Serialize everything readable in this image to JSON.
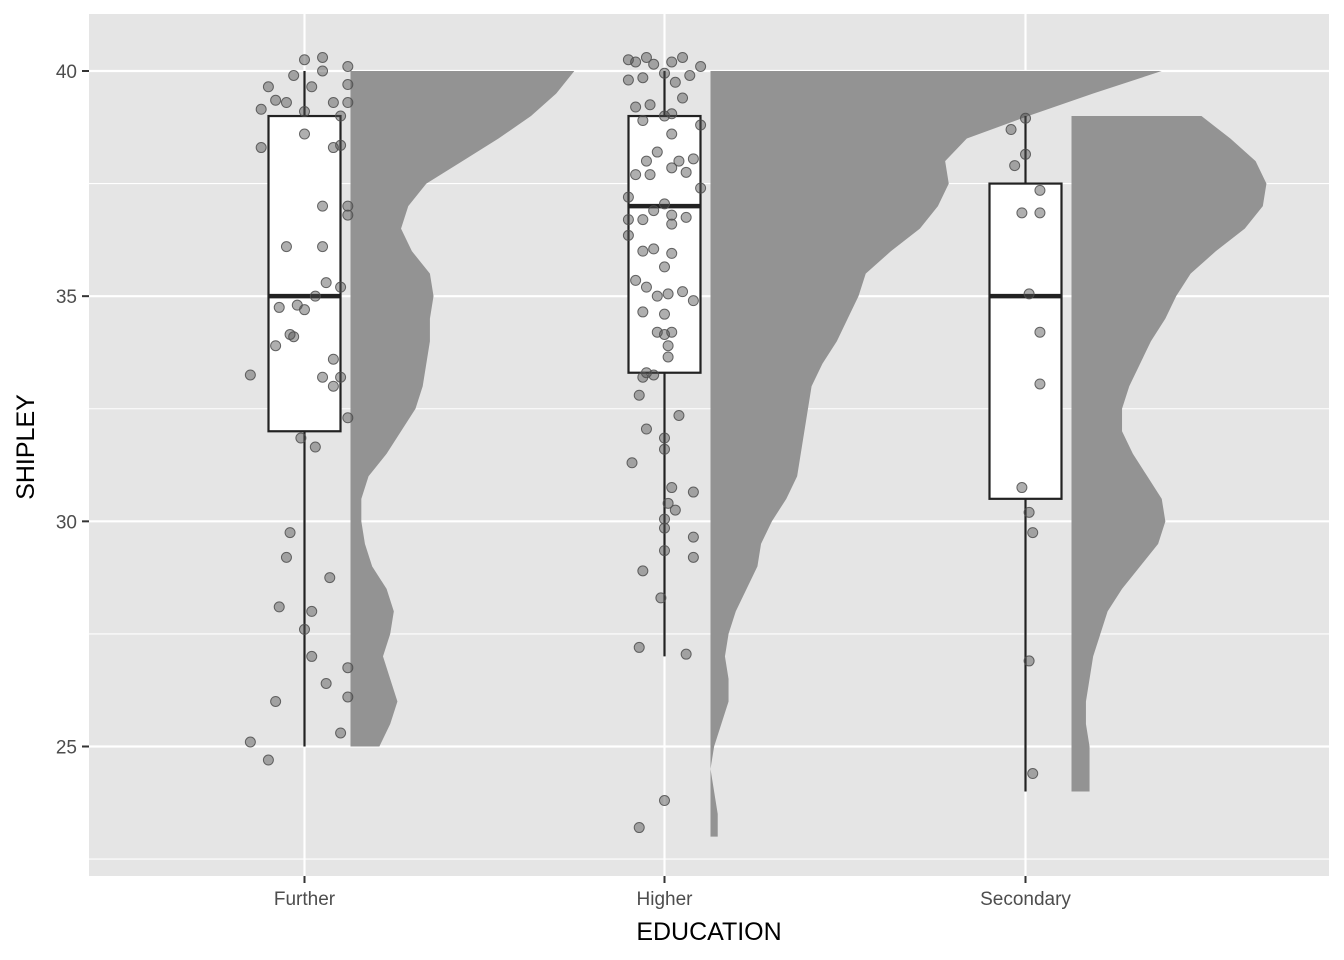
{
  "chart_data": {
    "type": "raincloud",
    "title": "",
    "xlabel": "EDUCATION",
    "ylabel": "SHIPLEY",
    "ylim": [
      22.2,
      40.3
    ],
    "y_ticks": [
      25,
      30,
      35,
      40
    ],
    "categories": [
      "Further",
      "Higher",
      "Secondary"
    ],
    "grid": true,
    "colors": {
      "panel": "#e5e5e5",
      "grid": "#ffffff",
      "density": "#939393",
      "box_fill": "#ffffff",
      "box_line": "#222222",
      "points": "#4d4d4d"
    },
    "groups": [
      {
        "name": "Further",
        "box": {
          "min": 25.0,
          "q1": 32.0,
          "median": 35.0,
          "q3": 39.0,
          "max": 40.0
        },
        "density": {
          "y": [
            25,
            25.5,
            26,
            26.5,
            27,
            27.5,
            28,
            28.5,
            29,
            29.5,
            30,
            30.5,
            31,
            31.5,
            32,
            32.5,
            33,
            33.5,
            34,
            34.5,
            35,
            35.5,
            36,
            36.5,
            37,
            37.5,
            38,
            38.5,
            39,
            39.5,
            40
          ],
          "width": [
            0.08,
            0.11,
            0.13,
            0.11,
            0.09,
            0.11,
            0.12,
            0.1,
            0.06,
            0.04,
            0.03,
            0.03,
            0.05,
            0.1,
            0.14,
            0.18,
            0.2,
            0.21,
            0.22,
            0.22,
            0.23,
            0.22,
            0.17,
            0.14,
            0.16,
            0.21,
            0.31,
            0.41,
            0.5,
            0.57,
            0.62
          ]
        },
        "points": [
          [
            0.05,
            40.3
          ],
          [
            0.0,
            40.25
          ],
          [
            0.12,
            40.1
          ],
          [
            0.05,
            40.0
          ],
          [
            -0.03,
            39.9
          ],
          [
            0.02,
            39.65
          ],
          [
            0.12,
            39.7
          ],
          [
            -0.1,
            39.65
          ],
          [
            -0.08,
            39.35
          ],
          [
            -0.05,
            39.3
          ],
          [
            0.08,
            39.3
          ],
          [
            0.12,
            39.3
          ],
          [
            -0.12,
            39.15
          ],
          [
            0.0,
            39.1
          ],
          [
            0.1,
            39.0
          ],
          [
            0.0,
            38.6
          ],
          [
            0.08,
            38.3
          ],
          [
            -0.12,
            38.3
          ],
          [
            0.1,
            38.35
          ],
          [
            0.05,
            37.0
          ],
          [
            0.12,
            37.0
          ],
          [
            0.12,
            36.8
          ],
          [
            -0.05,
            36.1
          ],
          [
            0.05,
            36.1
          ],
          [
            0.06,
            35.3
          ],
          [
            0.1,
            35.2
          ],
          [
            0.03,
            35.0
          ],
          [
            -0.02,
            34.8
          ],
          [
            -0.07,
            34.75
          ],
          [
            0.0,
            34.7
          ],
          [
            -0.03,
            34.1
          ],
          [
            -0.04,
            34.15
          ],
          [
            -0.08,
            33.9
          ],
          [
            0.08,
            33.6
          ],
          [
            0.05,
            33.2
          ],
          [
            0.1,
            33.2
          ],
          [
            -0.15,
            33.25
          ],
          [
            0.08,
            33.0
          ],
          [
            0.12,
            32.3
          ],
          [
            -0.01,
            31.85
          ],
          [
            0.03,
            31.65
          ],
          [
            -0.04,
            29.75
          ],
          [
            -0.05,
            29.2
          ],
          [
            0.07,
            28.75
          ],
          [
            -0.07,
            28.1
          ],
          [
            0.02,
            28.0
          ],
          [
            0.0,
            27.6
          ],
          [
            0.02,
            27.0
          ],
          [
            0.12,
            26.75
          ],
          [
            0.06,
            26.4
          ],
          [
            0.12,
            26.1
          ],
          [
            -0.08,
            26.0
          ],
          [
            0.1,
            25.3
          ],
          [
            -0.15,
            25.1
          ],
          [
            -0.1,
            24.7
          ]
        ]
      },
      {
        "name": "Higher",
        "box": {
          "min": 27.0,
          "q1": 33.3,
          "median": 37.0,
          "q3": 39.0,
          "max": 40.0
        },
        "density": {
          "y": [
            23,
            23.5,
            24,
            24.5,
            25,
            25.5,
            26,
            26.5,
            27,
            27.5,
            28,
            28.5,
            29,
            29.5,
            30,
            30.5,
            31,
            31.5,
            32,
            32.5,
            33,
            33.5,
            34,
            34.5,
            35,
            35.5,
            36,
            36.5,
            37,
            37.5,
            38,
            38.5,
            39,
            39.5,
            40
          ],
          "width": [
            0.02,
            0.02,
            0.01,
            0.0,
            0.01,
            0.03,
            0.05,
            0.05,
            0.04,
            0.05,
            0.07,
            0.1,
            0.13,
            0.14,
            0.17,
            0.21,
            0.24,
            0.25,
            0.26,
            0.27,
            0.28,
            0.31,
            0.35,
            0.38,
            0.41,
            0.43,
            0.5,
            0.58,
            0.63,
            0.66,
            0.65,
            0.71,
            0.88,
            1.06,
            1.25
          ]
        },
        "points": [
          [
            -0.05,
            40.3
          ],
          [
            -0.1,
            40.25
          ],
          [
            0.05,
            40.3
          ],
          [
            -0.03,
            40.15
          ],
          [
            0.02,
            40.2
          ],
          [
            0.1,
            40.1
          ],
          [
            -0.08,
            40.2
          ],
          [
            0.0,
            39.95
          ],
          [
            -0.06,
            39.85
          ],
          [
            0.07,
            39.9
          ],
          [
            -0.1,
            39.8
          ],
          [
            0.03,
            39.75
          ],
          [
            0.05,
            39.4
          ],
          [
            -0.04,
            39.25
          ],
          [
            0.02,
            39.05
          ],
          [
            -0.08,
            39.2
          ],
          [
            0.0,
            39.0
          ],
          [
            -0.06,
            38.9
          ],
          [
            0.1,
            38.8
          ],
          [
            0.02,
            38.6
          ],
          [
            -0.02,
            38.2
          ],
          [
            -0.05,
            38.0
          ],
          [
            0.04,
            38.0
          ],
          [
            0.08,
            38.05
          ],
          [
            0.02,
            37.85
          ],
          [
            0.06,
            37.75
          ],
          [
            -0.08,
            37.7
          ],
          [
            -0.04,
            37.7
          ],
          [
            0.1,
            37.4
          ],
          [
            -0.1,
            37.2
          ],
          [
            0.0,
            37.05
          ],
          [
            -0.03,
            36.9
          ],
          [
            0.02,
            36.8
          ],
          [
            0.06,
            36.75
          ],
          [
            -0.1,
            36.7
          ],
          [
            -0.06,
            36.7
          ],
          [
            0.02,
            36.6
          ],
          [
            -0.1,
            36.35
          ],
          [
            -0.03,
            36.05
          ],
          [
            -0.06,
            36.0
          ],
          [
            0.02,
            35.95
          ],
          [
            0.0,
            35.65
          ],
          [
            -0.08,
            35.35
          ],
          [
            0.05,
            35.1
          ],
          [
            -0.05,
            35.2
          ],
          [
            0.01,
            35.05
          ],
          [
            -0.02,
            35.0
          ],
          [
            0.08,
            34.9
          ],
          [
            -0.06,
            34.65
          ],
          [
            0.0,
            34.6
          ],
          [
            -0.02,
            34.2
          ],
          [
            0.02,
            34.2
          ],
          [
            0.0,
            34.15
          ],
          [
            0.01,
            33.9
          ],
          [
            0.01,
            33.65
          ],
          [
            -0.05,
            33.3
          ],
          [
            -0.03,
            33.25
          ],
          [
            -0.06,
            33.2
          ],
          [
            -0.07,
            32.8
          ],
          [
            0.04,
            32.35
          ],
          [
            -0.05,
            32.05
          ],
          [
            0.0,
            31.85
          ],
          [
            0.0,
            31.6
          ],
          [
            -0.09,
            31.3
          ],
          [
            0.02,
            30.75
          ],
          [
            0.08,
            30.65
          ],
          [
            0.01,
            30.4
          ],
          [
            0.03,
            30.25
          ],
          [
            0.0,
            30.05
          ],
          [
            0.0,
            29.85
          ],
          [
            0.08,
            29.65
          ],
          [
            0.0,
            29.35
          ],
          [
            0.08,
            29.2
          ],
          [
            -0.06,
            28.9
          ],
          [
            -0.01,
            28.3
          ],
          [
            -0.07,
            27.2
          ],
          [
            0.06,
            27.05
          ],
          [
            0.0,
            23.8
          ],
          [
            -0.07,
            23.2
          ]
        ]
      },
      {
        "name": "Secondary",
        "box": {
          "min": 24.0,
          "q1": 30.5,
          "median": 35.0,
          "q3": 37.5,
          "max": 39.0
        },
        "density": {
          "y": [
            24,
            24.5,
            25,
            25.5,
            26,
            26.5,
            27,
            27.5,
            28,
            28.5,
            29,
            29.5,
            30,
            30.5,
            31,
            31.5,
            32,
            32.5,
            33,
            33.5,
            34,
            34.5,
            35,
            35.5,
            36,
            36.5,
            37,
            37.5,
            38,
            38.5,
            39
          ],
          "width": [
            0.05,
            0.05,
            0.05,
            0.04,
            0.04,
            0.05,
            0.06,
            0.08,
            0.1,
            0.14,
            0.19,
            0.24,
            0.26,
            0.25,
            0.21,
            0.17,
            0.14,
            0.14,
            0.16,
            0.19,
            0.22,
            0.26,
            0.29,
            0.33,
            0.4,
            0.48,
            0.53,
            0.54,
            0.51,
            0.44,
            0.36
          ]
        },
        "points": [
          [
            0.0,
            38.95
          ],
          [
            -0.04,
            38.7
          ],
          [
            0.0,
            38.15
          ],
          [
            -0.03,
            37.9
          ],
          [
            0.04,
            37.35
          ],
          [
            -0.01,
            36.85
          ],
          [
            0.04,
            36.85
          ],
          [
            0.01,
            35.05
          ],
          [
            0.04,
            34.2
          ],
          [
            0.04,
            33.05
          ],
          [
            -0.01,
            30.75
          ],
          [
            0.01,
            30.2
          ],
          [
            0.02,
            29.75
          ],
          [
            0.01,
            26.9
          ],
          [
            0.02,
            24.4
          ]
        ]
      }
    ]
  }
}
